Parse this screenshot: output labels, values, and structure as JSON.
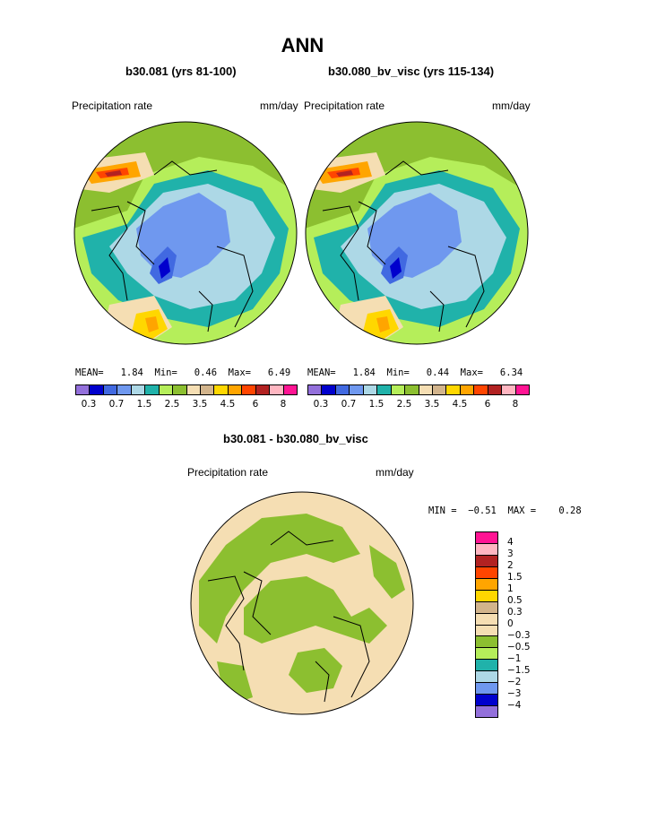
{
  "page": {
    "title": "ANN",
    "footer_title": "b30.081 - b30.080_bv_visc"
  },
  "panels": [
    {
      "run_title": "b30.081 (yrs 81-100)",
      "var_label": "Precipitation rate",
      "units": "mm/day",
      "stats_text": "MEAN=   1.84  Min=   0.46  Max=   6.49"
    },
    {
      "run_title": "b30.080_bv_visc (yrs 115-134)",
      "var_label": "Precipitation rate",
      "units": "mm/day",
      "stats_text": "MEAN=   1.84  Min=   0.44  Max=   6.34"
    }
  ],
  "diff_panel": {
    "var_label": "Precipitation rate",
    "units": "mm/day",
    "stats_text": "MIN =  −0.51  MAX =    0.28"
  },
  "colors": {
    "c1": "#9370db",
    "c2": "#0000cd",
    "c3": "#4169e1",
    "c4": "#6f98ef",
    "c5": "#add8e6",
    "c6": "#20b2aa",
    "c7": "#b5ee5a",
    "c8": "#8cbf30",
    "c9": "#f5deb3",
    "c10": "#d2b48c",
    "c11": "#ffd700",
    "c12": "#ffa500",
    "c13": "#ff4500",
    "c14": "#b22222",
    "c15": "#ffb6c1",
    "c16": "#ff1493",
    "land_line": "#000000"
  },
  "chart_data": [
    {
      "type": "heatmap",
      "projection": "north polar stereographic",
      "title": "b30.081 (yrs 81-100)",
      "variable": "Precipitation rate",
      "units": "mm/day",
      "mean": 1.84,
      "min": 0.46,
      "max": 6.49,
      "colorbar_levels": [
        0.2,
        0.3,
        0.5,
        0.7,
        1,
        1.5,
        2,
        2.5,
        3,
        3.5,
        4,
        4.5,
        5,
        6,
        7,
        8
      ],
      "colorbar_tick_labels": [
        "0.3",
        "0.7",
        "1.5",
        "2.5",
        "3.5",
        "4.5",
        "6",
        "8"
      ]
    },
    {
      "type": "heatmap",
      "projection": "north polar stereographic",
      "title": "b30.080_bv_visc (yrs 115-134)",
      "variable": "Precipitation rate",
      "units": "mm/day",
      "mean": 1.84,
      "min": 0.44,
      "max": 6.34,
      "colorbar_levels": [
        0.2,
        0.3,
        0.5,
        0.7,
        1,
        1.5,
        2,
        2.5,
        3,
        3.5,
        4,
        4.5,
        5,
        6,
        7,
        8
      ],
      "colorbar_tick_labels": [
        "0.3",
        "0.7",
        "1.5",
        "2.5",
        "3.5",
        "4.5",
        "6",
        "8"
      ]
    },
    {
      "type": "heatmap",
      "projection": "north polar stereographic",
      "title": "b30.081 - b30.080_bv_visc",
      "variable": "Precipitation rate",
      "units": "mm/day",
      "min": -0.51,
      "max": 0.28,
      "colorbar_tick_labels": [
        "4",
        "3",
        "2",
        "1.5",
        "1",
        "0.5",
        "0.3",
        "0",
        "−0.3",
        "−0.5",
        "−1",
        "−1.5",
        "−2",
        "−3",
        "−4"
      ]
    }
  ]
}
